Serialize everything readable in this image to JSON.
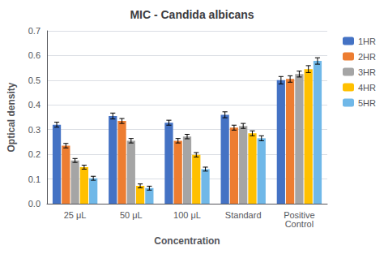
{
  "chart_data": {
    "type": "bar",
    "title": "MIC - Candida albicans",
    "xlabel": "Concentration",
    "ylabel": "Optical density",
    "categories": [
      "25 μL",
      "50 μL",
      "100 μL",
      "Standard",
      "Positive\nControl"
    ],
    "series": [
      {
        "name": "1HR",
        "color": "#4472C4",
        "values": [
          0.32,
          0.355,
          0.328,
          0.36,
          0.5
        ],
        "errors": [
          0.01,
          0.012,
          0.01,
          0.012,
          0.015
        ]
      },
      {
        "name": "2HR",
        "color": "#ED7D31",
        "values": [
          0.235,
          0.335,
          0.255,
          0.308,
          0.505
        ],
        "errors": [
          0.009,
          0.01,
          0.009,
          0.01,
          0.013
        ]
      },
      {
        "name": "3HR",
        "color": "#A5A5A5",
        "values": [
          0.175,
          0.255,
          0.272,
          0.315,
          0.525
        ],
        "errors": [
          0.008,
          0.009,
          0.009,
          0.01,
          0.012
        ]
      },
      {
        "name": "4HR",
        "color": "#FFC000",
        "values": [
          0.148,
          0.072,
          0.198,
          0.285,
          0.545
        ],
        "errors": [
          0.008,
          0.008,
          0.009,
          0.01,
          0.014
        ]
      },
      {
        "name": "5HR",
        "color": "#70B8E8",
        "values": [
          0.103,
          0.063,
          0.14,
          0.265,
          0.578
        ],
        "errors": [
          0.008,
          0.008,
          0.008,
          0.01,
          0.013
        ]
      }
    ],
    "ylim": [
      0,
      0.7
    ],
    "yticks": [
      {
        "value": 0,
        "label": "0.0"
      },
      0.1,
      0.2,
      0.3,
      0.4,
      0.5,
      0.6,
      0.7
    ],
    "grid": true,
    "legend": "right"
  }
}
